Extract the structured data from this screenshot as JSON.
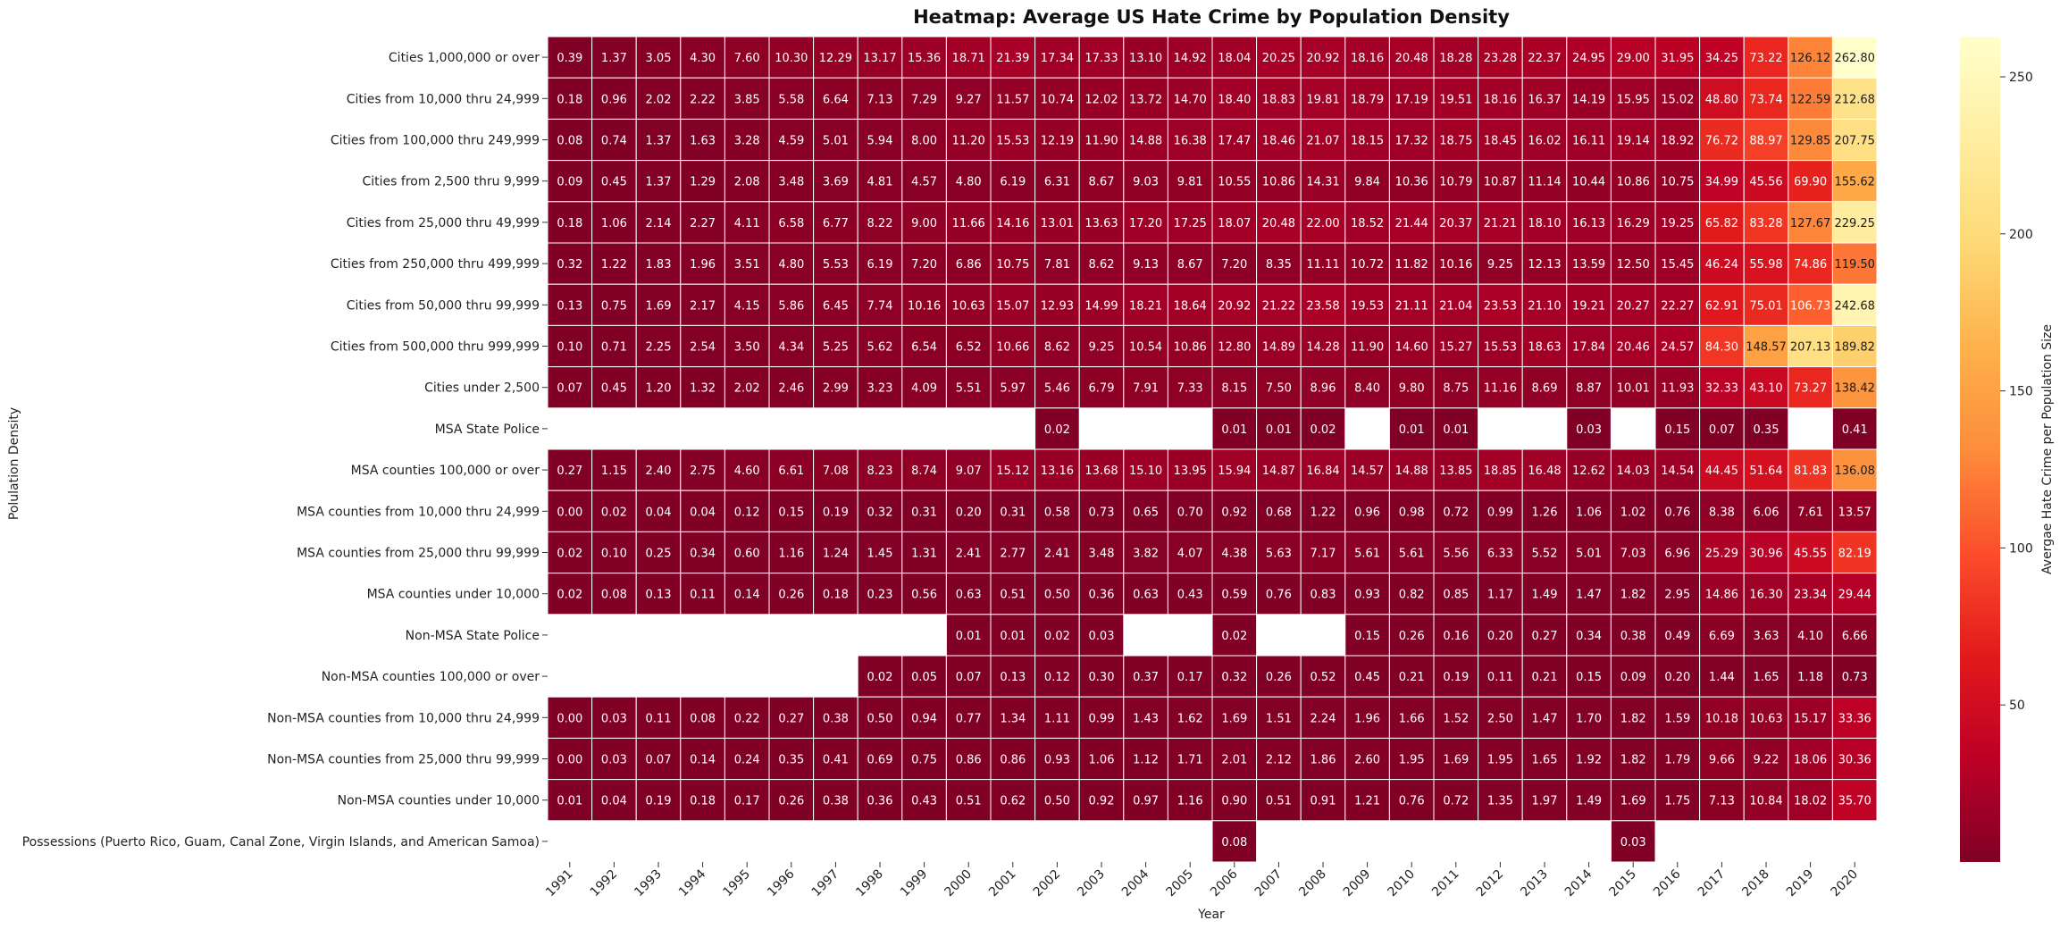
{
  "chart_data": {
    "type": "heatmap",
    "title": "Heatmap: Average US Hate Crime by Population Density",
    "xlabel": "Year",
    "ylabel": "Polulation Density",
    "colorbar_label": "Avergae Hate Crime per Population Size",
    "colormap": "YlOrRd_r",
    "vmin": 0,
    "vmax": 262.8,
    "colorbar_ticks": [
      50,
      100,
      150,
      200,
      250
    ],
    "years": [
      "1991",
      "1992",
      "1993",
      "1994",
      "1995",
      "1996",
      "1997",
      "1998",
      "1999",
      "2000",
      "2001",
      "2002",
      "2003",
      "2004",
      "2005",
      "2006",
      "2007",
      "2008",
      "2009",
      "2010",
      "2011",
      "2012",
      "2013",
      "2014",
      "2015",
      "2016",
      "2017",
      "2018",
      "2019",
      "2020"
    ],
    "rows": [
      "Cities 1,000,000 or over",
      "Cities from 10,000 thru 24,999",
      "Cities from 100,000 thru 249,999",
      "Cities from 2,500 thru 9,999",
      "Cities from 25,000 thru 49,999",
      "Cities from 250,000 thru 499,999",
      "Cities from 50,000 thru 99,999",
      "Cities from 500,000 thru 999,999",
      "Cities under 2,500",
      "MSA State Police",
      "MSA counties 100,000 or over",
      "MSA counties from 10,000 thru 24,999",
      "MSA counties from 25,000 thru 99,999",
      "MSA counties under 10,000",
      "Non-MSA State Police",
      "Non-MSA counties 100,000 or over",
      "Non-MSA counties from 10,000 thru 24,999",
      "Non-MSA counties from 25,000 thru 99,999",
      "Non-MSA counties under 10,000",
      "Possessions (Puerto Rico, Guam, Canal Zone, Virgin Islands, and American Samoa)"
    ],
    "values": [
      [
        0.39,
        1.37,
        3.05,
        4.3,
        7.6,
        10.3,
        12.29,
        13.17,
        15.36,
        18.71,
        21.39,
        17.34,
        17.33,
        13.1,
        14.92,
        18.04,
        20.25,
        20.92,
        18.16,
        20.48,
        18.28,
        23.28,
        22.37,
        24.95,
        29.0,
        31.95,
        34.25,
        73.22,
        126.12,
        262.8
      ],
      [
        0.18,
        0.96,
        2.02,
        2.22,
        3.85,
        5.58,
        6.64,
        7.13,
        7.29,
        9.27,
        11.57,
        10.74,
        12.02,
        13.72,
        14.7,
        18.4,
        18.83,
        19.81,
        18.79,
        17.19,
        19.51,
        18.16,
        16.37,
        14.19,
        15.95,
        15.02,
        48.8,
        73.74,
        122.59,
        212.68
      ],
      [
        0.08,
        0.74,
        1.37,
        1.63,
        3.28,
        4.59,
        5.01,
        5.94,
        8.0,
        11.2,
        15.53,
        12.19,
        11.9,
        14.88,
        16.38,
        17.47,
        18.46,
        21.07,
        18.15,
        17.32,
        18.75,
        18.45,
        16.02,
        16.11,
        19.14,
        18.92,
        76.72,
        88.97,
        129.85,
        207.75
      ],
      [
        0.09,
        0.45,
        1.37,
        1.29,
        2.08,
        3.48,
        3.69,
        4.81,
        4.57,
        4.8,
        6.19,
        6.31,
        8.67,
        9.03,
        9.81,
        10.55,
        10.86,
        14.31,
        9.84,
        10.36,
        10.79,
        10.87,
        11.14,
        10.44,
        10.86,
        10.75,
        34.99,
        45.56,
        69.9,
        155.62
      ],
      [
        0.18,
        1.06,
        2.14,
        2.27,
        4.11,
        6.58,
        6.77,
        8.22,
        9.0,
        11.66,
        14.16,
        13.01,
        13.63,
        17.2,
        17.25,
        18.07,
        20.48,
        22.0,
        18.52,
        21.44,
        20.37,
        21.21,
        18.1,
        16.13,
        16.29,
        19.25,
        65.82,
        83.28,
        127.67,
        229.25
      ],
      [
        0.32,
        1.22,
        1.83,
        1.96,
        3.51,
        4.8,
        5.53,
        6.19,
        7.2,
        6.86,
        10.75,
        7.81,
        8.62,
        9.13,
        8.67,
        7.2,
        8.35,
        11.11,
        10.72,
        11.82,
        10.16,
        9.25,
        12.13,
        13.59,
        12.5,
        15.45,
        46.24,
        55.98,
        74.86,
        119.5
      ],
      [
        0.13,
        0.75,
        1.69,
        2.17,
        4.15,
        5.86,
        6.45,
        7.74,
        10.16,
        10.63,
        15.07,
        12.93,
        14.99,
        18.21,
        18.64,
        20.92,
        21.22,
        23.58,
        19.53,
        21.11,
        21.04,
        23.53,
        21.1,
        19.21,
        20.27,
        22.27,
        62.91,
        75.01,
        106.73,
        242.68
      ],
      [
        0.1,
        0.71,
        2.25,
        2.54,
        3.5,
        4.34,
        5.25,
        5.62,
        6.54,
        6.52,
        10.66,
        8.62,
        9.25,
        10.54,
        10.86,
        12.8,
        14.89,
        14.28,
        11.9,
        14.6,
        15.27,
        15.53,
        18.63,
        17.84,
        20.46,
        24.57,
        84.3,
        148.57,
        207.13,
        189.82
      ],
      [
        0.07,
        0.45,
        1.2,
        1.32,
        2.02,
        2.46,
        2.99,
        3.23,
        4.09,
        5.51,
        5.97,
        5.46,
        6.79,
        7.91,
        7.33,
        8.15,
        7.5,
        8.96,
        8.4,
        9.8,
        8.75,
        11.16,
        8.69,
        8.87,
        10.01,
        11.93,
        32.33,
        43.1,
        73.27,
        138.42
      ],
      [
        null,
        null,
        null,
        null,
        null,
        null,
        null,
        null,
        null,
        null,
        null,
        0.02,
        null,
        null,
        null,
        0.01,
        0.01,
        0.02,
        null,
        0.01,
        0.01,
        null,
        null,
        0.03,
        null,
        0.15,
        0.07,
        0.35,
        null,
        0.41
      ],
      [
        0.27,
        1.15,
        2.4,
        2.75,
        4.6,
        6.61,
        7.08,
        8.23,
        8.74,
        9.07,
        15.12,
        13.16,
        13.68,
        15.1,
        13.95,
        15.94,
        14.87,
        16.84,
        14.57,
        14.88,
        13.85,
        18.85,
        16.48,
        12.62,
        14.03,
        14.54,
        44.45,
        51.64,
        81.83,
        136.08
      ],
      [
        0.0,
        0.02,
        0.04,
        0.04,
        0.12,
        0.15,
        0.19,
        0.32,
        0.31,
        0.2,
        0.31,
        0.58,
        0.73,
        0.65,
        0.7,
        0.92,
        0.68,
        1.22,
        0.96,
        0.98,
        0.72,
        0.99,
        1.26,
        1.06,
        1.02,
        0.76,
        8.38,
        6.06,
        7.61,
        13.57
      ],
      [
        0.02,
        0.1,
        0.25,
        0.34,
        0.6,
        1.16,
        1.24,
        1.45,
        1.31,
        2.41,
        2.77,
        2.41,
        3.48,
        3.82,
        4.07,
        4.38,
        5.63,
        7.17,
        5.61,
        5.61,
        5.56,
        6.33,
        5.52,
        5.01,
        7.03,
        6.96,
        25.29,
        30.96,
        45.55,
        82.19
      ],
      [
        0.02,
        0.08,
        0.13,
        0.11,
        0.14,
        0.26,
        0.18,
        0.23,
        0.56,
        0.63,
        0.51,
        0.5,
        0.36,
        0.63,
        0.43,
        0.59,
        0.76,
        0.83,
        0.93,
        0.82,
        0.85,
        1.17,
        1.49,
        1.47,
        1.82,
        2.95,
        14.86,
        16.3,
        23.34,
        29.44
      ],
      [
        null,
        null,
        null,
        null,
        null,
        null,
        null,
        null,
        null,
        0.01,
        0.01,
        0.02,
        0.03,
        null,
        null,
        0.02,
        null,
        null,
        0.15,
        0.26,
        0.16,
        0.2,
        0.27,
        0.34,
        0.38,
        0.49,
        6.69,
        3.63,
        4.1,
        6.66
      ],
      [
        null,
        null,
        null,
        null,
        null,
        null,
        null,
        0.02,
        0.05,
        0.07,
        0.13,
        0.12,
        0.3,
        0.37,
        0.17,
        0.32,
        0.26,
        0.52,
        0.45,
        0.21,
        0.19,
        0.11,
        0.21,
        0.15,
        0.09,
        0.2,
        1.44,
        1.65,
        1.18,
        0.73
      ],
      [
        0.0,
        0.03,
        0.11,
        0.08,
        0.22,
        0.27,
        0.38,
        0.5,
        0.94,
        0.77,
        1.34,
        1.11,
        0.99,
        1.43,
        1.62,
        1.69,
        1.51,
        2.24,
        1.96,
        1.66,
        1.52,
        2.5,
        1.47,
        1.7,
        1.82,
        1.59,
        10.18,
        10.63,
        15.17,
        33.36
      ],
      [
        0.0,
        0.03,
        0.07,
        0.14,
        0.24,
        0.35,
        0.41,
        0.69,
        0.75,
        0.86,
        0.86,
        0.93,
        1.06,
        1.12,
        1.71,
        2.01,
        2.12,
        1.86,
        2.6,
        1.95,
        1.69,
        1.95,
        1.65,
        1.92,
        1.82,
        1.79,
        9.66,
        9.22,
        18.06,
        30.36
      ],
      [
        0.01,
        0.04,
        0.19,
        0.18,
        0.17,
        0.26,
        0.38,
        0.36,
        0.43,
        0.51,
        0.62,
        0.5,
        0.92,
        0.97,
        1.16,
        0.9,
        0.51,
        0.91,
        1.21,
        0.76,
        0.72,
        1.35,
        1.97,
        1.49,
        1.69,
        1.75,
        7.13,
        10.84,
        18.02,
        35.7
      ],
      [
        null,
        null,
        null,
        null,
        null,
        null,
        null,
        null,
        null,
        null,
        null,
        null,
        null,
        null,
        null,
        0.08,
        null,
        null,
        null,
        null,
        null,
        null,
        null,
        null,
        0.03,
        null,
        null,
        null,
        null,
        null
      ]
    ]
  }
}
